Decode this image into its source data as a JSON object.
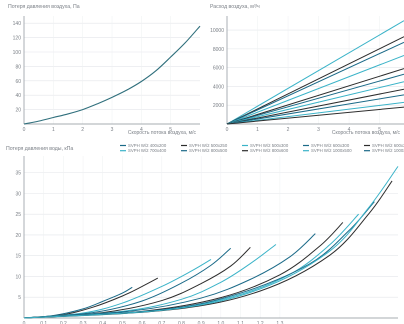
{
  "chart_data": [
    {
      "type": "line",
      "title": "Потеря давления воздуха, Па",
      "xlabel": "Скорость потока воздуха, м/с",
      "ylabel": "",
      "xlim": [
        0,
        6
      ],
      "ylim": [
        0,
        150
      ],
      "xticks": [
        "0",
        "1",
        "2",
        "3",
        "4",
        "5"
      ],
      "yticks": [
        "20",
        "40",
        "60",
        "80",
        "100",
        "120",
        "140"
      ],
      "grid": true,
      "series": [
        {
          "color": "#2f6f7c",
          "x": [
            0,
            0.5,
            1,
            1.5,
            2,
            2.5,
            3,
            3.5,
            4,
            4.5,
            5,
            5.5,
            6
          ],
          "y": [
            0,
            4,
            9,
            14,
            20,
            28,
            37,
            47,
            59,
            74,
            93,
            113,
            136
          ]
        }
      ]
    },
    {
      "type": "line",
      "title": "Расход воздуха, м³/ч",
      "xlabel": "Скорость потока воздуха, м/с",
      "ylabel": "",
      "xlim": [
        0,
        5.8
      ],
      "ylim": [
        0,
        11500
      ],
      "xticks": [
        "0",
        "1",
        "2",
        "3",
        "4",
        "5"
      ],
      "yticks": [
        "2000",
        "4000",
        "6000",
        "8000",
        "10000"
      ],
      "grid": true,
      "series": [
        {
          "color": "#3ab3c8",
          "x": [
            0,
            5.8
          ],
          "y": [
            0,
            11000
          ]
        },
        {
          "color": "#2d2d2d",
          "x": [
            0,
            5.8
          ],
          "y": [
            0,
            9300
          ]
        },
        {
          "color": "#1b6a88",
          "x": [
            0,
            5.8
          ],
          "y": [
            0,
            8700
          ]
        },
        {
          "color": "#3ab3c8",
          "x": [
            0,
            5.8
          ],
          "y": [
            0,
            7300
          ]
        },
        {
          "color": "#2d2d2d",
          "x": [
            0,
            5.8
          ],
          "y": [
            0,
            5900
          ]
        },
        {
          "color": "#1b6a88",
          "x": [
            0,
            5.8
          ],
          "y": [
            0,
            5300
          ]
        },
        {
          "color": "#3ab3c8",
          "x": [
            0,
            5.8
          ],
          "y": [
            0,
            4500
          ]
        },
        {
          "color": "#2d2d2d",
          "x": [
            0,
            5.8
          ],
          "y": [
            0,
            3700
          ]
        },
        {
          "color": "#1b6a88",
          "x": [
            0,
            5.8
          ],
          "y": [
            0,
            3100
          ]
        },
        {
          "color": "#3ab3c8",
          "x": [
            0,
            5.8
          ],
          "y": [
            0,
            2300
          ]
        },
        {
          "color": "#2d2d2d",
          "x": [
            0,
            5.8
          ],
          "y": [
            0,
            1800
          ]
        }
      ]
    },
    {
      "type": "line",
      "title": "Потеря давления воды, кПа",
      "xlabel": "",
      "ylabel": "",
      "xlim": [
        0,
        1.9
      ],
      "ylim": [
        0,
        39
      ],
      "xticks": [
        "0",
        "0.1",
        "0.2",
        "0.3",
        "0.4",
        "0.5",
        "0.6",
        "0.7",
        "0.8",
        "0.9",
        "1.0",
        "1.1",
        "1.2",
        "1.3"
      ],
      "yticks": [
        "5",
        "10",
        "15",
        "20",
        "25",
        "30",
        "35"
      ],
      "grid": true,
      "legend": "top-right",
      "series": [
        {
          "name": "SVPH W/2 400x200",
          "color": "#1b6a88",
          "x": [
            0,
            0.15,
            0.3,
            0.4,
            0.5,
            0.55
          ],
          "y": [
            0,
            0.6,
            2.2,
            4.0,
            6.0,
            7.4
          ]
        },
        {
          "name": "SVPH W/2 500x250",
          "color": "#2d2d2d",
          "x": [
            0,
            0.2,
            0.35,
            0.5,
            0.6,
            0.68
          ],
          "y": [
            0,
            0.8,
            2.6,
            5.3,
            7.6,
            9.6
          ]
        },
        {
          "name": "SVPH W/2 500x300",
          "color": "#3ab3c8",
          "x": [
            0,
            0.3,
            0.5,
            0.7,
            0.85,
            0.95
          ],
          "y": [
            0,
            1.2,
            3.6,
            7.6,
            11.3,
            14.1
          ]
        },
        {
          "name": "SVPH W/2 600x300",
          "color": "#1b6a88",
          "x": [
            0,
            0.35,
            0.6,
            0.8,
            0.95,
            1.05
          ],
          "y": [
            0,
            1.3,
            4.1,
            8.4,
            12.7,
            16.8
          ]
        },
        {
          "name": "SVPH W/2 600x350",
          "color": "#2d2d2d",
          "x": [
            0,
            0.4,
            0.7,
            0.9,
            1.05,
            1.15
          ],
          "y": [
            0,
            1.3,
            4.2,
            8.3,
            12.5,
            17.0
          ]
        },
        {
          "name": "SVPH W/2 700x400",
          "color": "#3ab3c8",
          "x": [
            0,
            0.5,
            0.8,
            1.0,
            1.15,
            1.28
          ],
          "y": [
            0,
            1.6,
            4.5,
            8.6,
            13.1,
            17.7
          ]
        },
        {
          "name": "SVPH W/2 800x500",
          "color": "#1b6a88",
          "x": [
            0,
            0.55,
            0.9,
            1.15,
            1.35,
            1.48
          ],
          "y": [
            0,
            1.7,
            4.8,
            9.3,
            14.7,
            20.3
          ]
        },
        {
          "name": "SVPH W/2 800x600",
          "color": "#2d2d2d",
          "x": [
            0,
            0.6,
            1.0,
            1.3,
            1.5,
            1.62
          ],
          "y": [
            0,
            1.6,
            4.9,
            10.4,
            17.2,
            23.0
          ]
        },
        {
          "name": "SVPH W/2 1000x500",
          "color": "#3ab3c8",
          "x": [
            0,
            0.65,
            1.05,
            1.35,
            1.55,
            1.7
          ],
          "y": [
            0,
            1.6,
            5.0,
            10.5,
            17.5,
            25.0
          ]
        },
        {
          "name": "SVPH W/2 1000x500",
          "color": "#1b6a88",
          "x": [
            0,
            0.7,
            1.1,
            1.45,
            1.65,
            1.78
          ],
          "y": [
            0,
            2.0,
            6.0,
            13.0,
            21.0,
            28.0
          ]
        },
        {
          "name": "SVPH W/2 1200x600",
          "color": "#2d2d2d",
          "x": [
            0,
            0.75,
            1.2,
            1.55,
            1.75,
            1.87
          ],
          "y": [
            0,
            2.0,
            6.5,
            15.0,
            25.0,
            33.0
          ]
        },
        {
          "name": "SVPH W/2 1200x600",
          "color": "#3ab3c8",
          "x": [
            0,
            0.75,
            1.2,
            1.55,
            1.75,
            1.9
          ],
          "y": [
            0,
            2.1,
            7.0,
            16.0,
            26.5,
            36.5
          ]
        }
      ]
    }
  ]
}
